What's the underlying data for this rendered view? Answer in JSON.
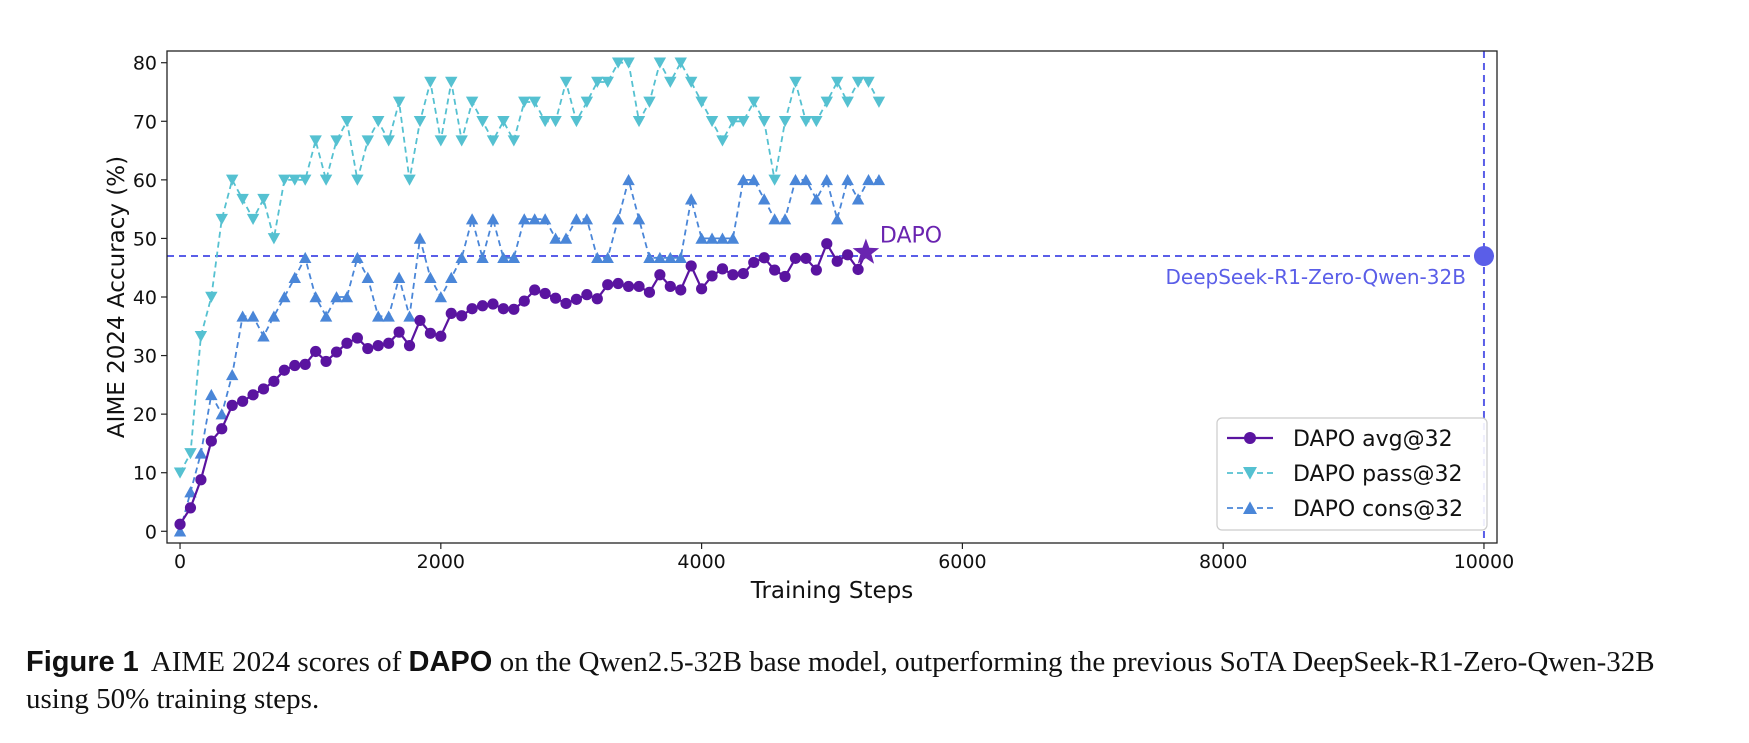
{
  "chart_data": {
    "type": "line",
    "xlabel": "Training Steps",
    "ylabel": "AIME 2024 Accuracy (%)",
    "xlim": [
      -100,
      10100
    ],
    "ylim": [
      -2,
      82
    ],
    "xticks": [
      0,
      2000,
      4000,
      6000,
      8000,
      10000
    ],
    "yticks": [
      0,
      10,
      20,
      30,
      40,
      50,
      60,
      70,
      80
    ],
    "legend_position": "bottom-right",
    "series": [
      {
        "name": "DAPO avg@32",
        "color": "#5a14a0",
        "line_style": "solid",
        "marker": "circle",
        "x": [
          0,
          80,
          160,
          240,
          320,
          400,
          480,
          560,
          640,
          720,
          800,
          880,
          960,
          1040,
          1120,
          1200,
          1280,
          1360,
          1440,
          1520,
          1600,
          1680,
          1760,
          1840,
          1920,
          2000,
          2080,
          2160,
          2240,
          2320,
          2400,
          2480,
          2560,
          2640,
          2720,
          2800,
          2880,
          2960,
          3040,
          3120,
          3200,
          3280,
          3360,
          3440,
          3520,
          3600,
          3680,
          3760,
          3840,
          3920,
          4000,
          4080,
          4160,
          4240,
          4320,
          4400,
          4480,
          4560,
          4640,
          4720,
          4800,
          4880,
          4960,
          5040,
          5120,
          5200
        ],
        "y": [
          1.2,
          4.0,
          8.8,
          15.4,
          17.5,
          21.5,
          22.2,
          23.3,
          24.3,
          25.6,
          27.5,
          28.3,
          28.5,
          30.7,
          29.0,
          30.6,
          32.1,
          33.0,
          31.2,
          31.7,
          32.1,
          34.0,
          31.7,
          36.0,
          33.8,
          33.3,
          37.2,
          36.8,
          38.0,
          38.5,
          38.8,
          38.0,
          37.9,
          39.3,
          41.2,
          40.6,
          39.8,
          38.9,
          39.6,
          40.4,
          39.7,
          42.1,
          42.3,
          41.8,
          41.8,
          40.8,
          43.8,
          41.8,
          41.2,
          45.3,
          41.4,
          43.6,
          44.8,
          43.8,
          44.0,
          45.9,
          46.7,
          44.6,
          43.5,
          46.6,
          46.6,
          44.6,
          49.1,
          46.1,
          47.2,
          44.7
        ],
        "final_x": 5260,
        "final_y": 47.6
      },
      {
        "name": "DAPO pass@32",
        "color": "#55c1d1",
        "line_style": "dashed",
        "marker": "triangle-down",
        "x": [
          0,
          80,
          160,
          240,
          320,
          400,
          480,
          560,
          640,
          720,
          800,
          880,
          960,
          1040,
          1120,
          1200,
          1280,
          1360,
          1440,
          1520,
          1600,
          1680,
          1760,
          1840,
          1920,
          2000,
          2080,
          2160,
          2240,
          2320,
          2400,
          2480,
          2560,
          2640,
          2720,
          2800,
          2880,
          2960,
          3040,
          3120,
          3200,
          3280,
          3360,
          3440,
          3520,
          3600,
          3680,
          3760,
          3840,
          3920,
          4000,
          4080,
          4160,
          4240,
          4320,
          4400,
          4480,
          4560,
          4640,
          4720,
          4800,
          4880,
          4960,
          5040,
          5120,
          5200,
          5280,
          5360
        ],
        "y": [
          10,
          13.3,
          33.3,
          40,
          53.3,
          60,
          56.7,
          53.3,
          56.7,
          50,
          60,
          60,
          60,
          66.7,
          60,
          66.7,
          70,
          60,
          66.7,
          70,
          66.7,
          73.3,
          60,
          70,
          76.7,
          66.7,
          76.7,
          66.7,
          73.3,
          70,
          66.7,
          70,
          66.7,
          73.3,
          73.3,
          70,
          70,
          76.7,
          70,
          73.3,
          76.7,
          76.7,
          80,
          80,
          70,
          73.3,
          80,
          76.7,
          80,
          76.7,
          73.3,
          70,
          66.7,
          70,
          70,
          73.3,
          70,
          60,
          70,
          76.7,
          70,
          70,
          73.3,
          76.7,
          73.3,
          76.7,
          76.7,
          73.3
        ]
      },
      {
        "name": "DAPO cons@32",
        "color": "#4a86d8",
        "line_style": "dashed",
        "marker": "triangle-up",
        "x": [
          0,
          80,
          160,
          240,
          320,
          400,
          480,
          560,
          640,
          720,
          800,
          880,
          960,
          1040,
          1120,
          1200,
          1280,
          1360,
          1440,
          1520,
          1600,
          1680,
          1760,
          1840,
          1920,
          2000,
          2080,
          2160,
          2240,
          2320,
          2400,
          2480,
          2560,
          2640,
          2720,
          2800,
          2880,
          2960,
          3040,
          3120,
          3200,
          3280,
          3360,
          3440,
          3520,
          3600,
          3680,
          3760,
          3840,
          3920,
          4000,
          4080,
          4160,
          4240,
          4320,
          4400,
          4480,
          4560,
          4640,
          4720,
          4800,
          4880,
          4960,
          5040,
          5120,
          5200,
          5280,
          5360
        ],
        "y": [
          0,
          6.7,
          13.3,
          23.3,
          20,
          26.7,
          36.7,
          36.7,
          33.3,
          36.7,
          40,
          43.3,
          46.7,
          40,
          36.7,
          40,
          40,
          46.7,
          43.3,
          36.7,
          36.7,
          43.3,
          36.7,
          50,
          43.3,
          40,
          43.3,
          46.7,
          53.3,
          46.7,
          53.3,
          46.7,
          46.7,
          53.3,
          53.3,
          53.3,
          50,
          50,
          53.3,
          53.3,
          46.7,
          46.7,
          53.3,
          60,
          53.3,
          46.7,
          46.7,
          46.7,
          46.7,
          56.7,
          50,
          50,
          50,
          50,
          60,
          60,
          56.7,
          53.3,
          53.3,
          60,
          60,
          56.7,
          60,
          53.3,
          60,
          56.7,
          60,
          60
        ]
      }
    ],
    "reference": {
      "name": "DeepSeek-R1-Zero-Qwen-32B",
      "color": "#5a5ee8",
      "x": 10000,
      "y": 47
    },
    "annotation": {
      "text": "DAPO",
      "color": "#6a24b0",
      "x": 5260,
      "y": 47.6
    }
  },
  "caption": {
    "label": "Figure 1",
    "text_before": "AIME 2024 scores of ",
    "method": "DAPO",
    "text_after": " on the Qwen2.5-32B base model, outperforming the previous SoTA DeepSeek-R1-Zero-Qwen-32B using 50% training steps."
  }
}
